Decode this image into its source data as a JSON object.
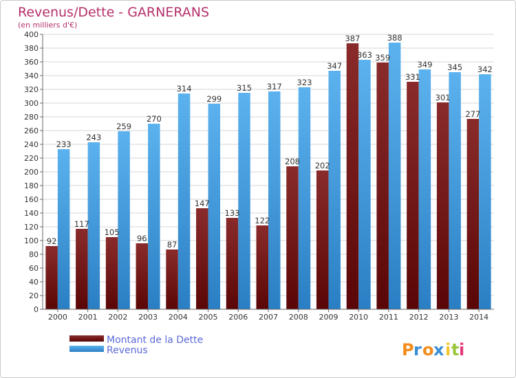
{
  "chart_data": {
    "type": "bar",
    "title": "Revenus/Dette - GARNERANS",
    "subtitle": "(en milliers d'€)",
    "categories": [
      "2000",
      "2001",
      "2002",
      "2003",
      "2004",
      "2005",
      "2006",
      "2007",
      "2008",
      "2009",
      "2010",
      "2011",
      "2012",
      "2013",
      "2014"
    ],
    "series": [
      {
        "name": "Montant de la Dette",
        "color": "#7a1a1a",
        "values": [
          92,
          117,
          105,
          96,
          87,
          147,
          133,
          122,
          208,
          202,
          387,
          359,
          331,
          301,
          277
        ]
      },
      {
        "name": "Revenus",
        "color": "#4aa3e6",
        "values": [
          233,
          243,
          259,
          270,
          314,
          299,
          315,
          317,
          323,
          347,
          363,
          388,
          349,
          345,
          342
        ]
      }
    ],
    "ylim": [
      0,
      400
    ],
    "ytick_step": 20,
    "grid": true,
    "legend_position": "bottom-left",
    "xlabel": "",
    "ylabel": ""
  },
  "brand": {
    "letters": [
      "P",
      "r",
      "o",
      "x",
      "i",
      "t",
      "i"
    ],
    "colors": [
      "#f28c1b",
      "#3a8fd6",
      "#f28c1b",
      "#3a8fd6",
      "#f5c52b",
      "#9ac43c",
      "#e53a7a"
    ]
  }
}
